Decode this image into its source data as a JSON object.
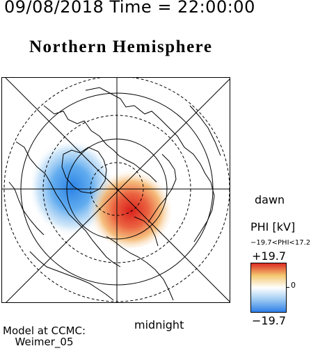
{
  "header": {
    "timestamp": "09/08/2018 Time = 22:00:00"
  },
  "map": {
    "title": "Northern Hemisphere",
    "projection": "polar",
    "labels": {
      "dawn": "dawn",
      "midnight": "midnight"
    },
    "colors": {
      "land_outline": "#000000",
      "positive_cell": "#e8312a",
      "negative_cell": "#3a93e6",
      "background": "#ffffff"
    }
  },
  "legend": {
    "quantity": "PHI [kV]",
    "range_text": "−19.7<PHI<17.2",
    "max": "+19.7",
    "min": "−19.7",
    "zero": "0",
    "colormap": [
      "#2e7fe8",
      "#9cc9f2",
      "#ffffff",
      "#f3c870",
      "#dd2a22"
    ]
  },
  "model": {
    "line1": "Model at CCMC:",
    "line2": "Weimer_05"
  }
}
